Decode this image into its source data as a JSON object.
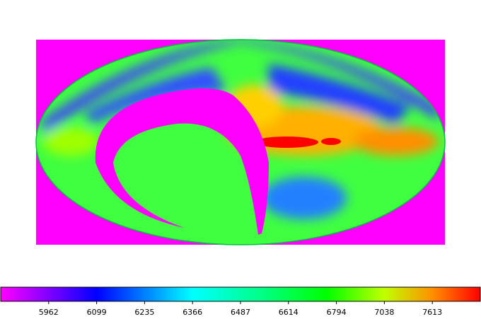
{
  "colorbar": {
    "ticks": [
      5962,
      6099,
      6235,
      6366,
      6487,
      6614,
      6794,
      7038,
      7613
    ]
  }
}
